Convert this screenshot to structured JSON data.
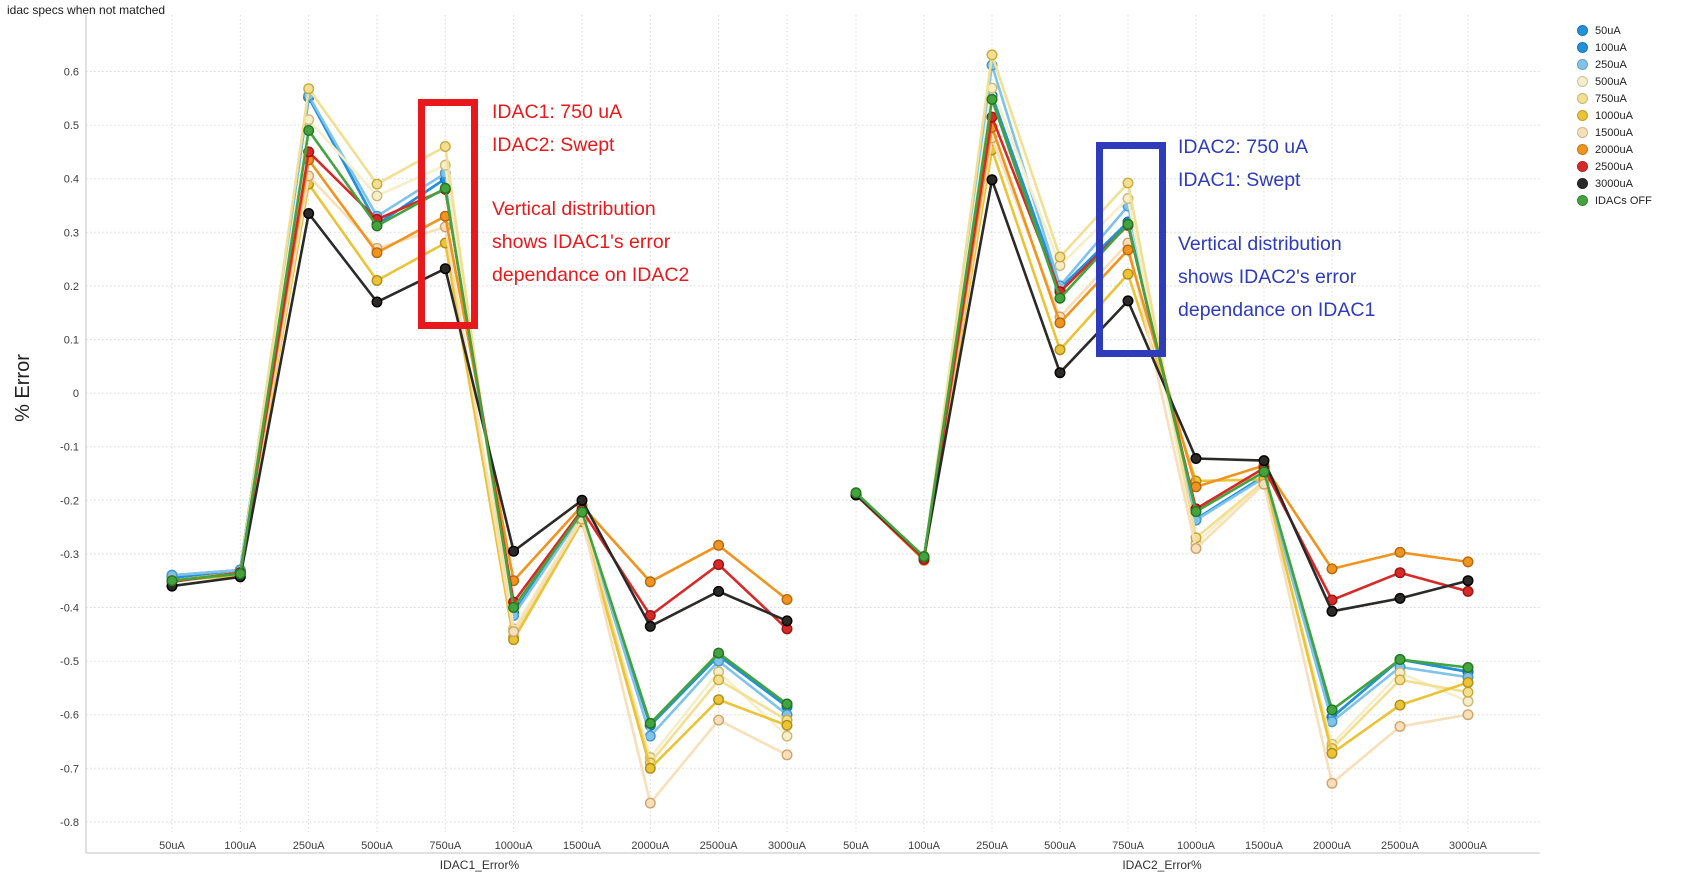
{
  "title": "idac specs when not matched",
  "y_axis_title": "% Error",
  "legend": {
    "items": [
      {
        "label": "50uA",
        "color": "#2191d9"
      },
      {
        "label": "100uA",
        "color": "#2191d9"
      },
      {
        "label": "250uA",
        "color": "#7fc3ea"
      },
      {
        "label": "500uA",
        "color": "#f6eec9"
      },
      {
        "label": "750uA",
        "color": "#f2df92"
      },
      {
        "label": "1000uA",
        "color": "#eac337"
      },
      {
        "label": "1500uA",
        "color": "#f7dfba"
      },
      {
        "label": "2000uA",
        "color": "#f0941f"
      },
      {
        "label": "2500uA",
        "color": "#d62a28"
      },
      {
        "label": "3000uA",
        "color": "#2b2a28"
      },
      {
        "label": "IDACs OFF",
        "color": "#44a33f"
      }
    ]
  },
  "annotations": [
    {
      "color": "#e8191d",
      "heading_lines": [
        "IDAC1: 750 uA",
        "IDAC2: Swept"
      ],
      "body_lines": [
        "Vertical distribution",
        "shows IDAC1's error",
        "dependance on IDAC2"
      ]
    },
    {
      "color": "#2e3bbb",
      "heading_lines": [
        "IDAC2: 750 uA",
        "IDAC1: Swept"
      ],
      "body_lines": [
        "Vertical distribution",
        "shows IDAC2's error",
        "dependance on IDAC1"
      ]
    }
  ],
  "chart_data": {
    "type": "line",
    "title": "idac specs when not matched",
    "ylabel": "% Error",
    "ylim": [
      -0.8,
      0.65
    ],
    "yticks": [
      0.6,
      0.5,
      0.4,
      0.3,
      0.2,
      0.1,
      0,
      -0.1,
      -0.2,
      -0.3,
      -0.4,
      -0.5,
      -0.6,
      -0.7,
      -0.8
    ],
    "grid": true,
    "legend_position": "top-right",
    "categories": [
      "50uA",
      "100uA",
      "250uA",
      "500uA",
      "750uA",
      "1000uA",
      "1500uA",
      "2000uA",
      "2500uA",
      "3000uA"
    ],
    "panels": [
      {
        "xlabel": "IDAC1_Error%"
      },
      {
        "xlabel": "IDAC2_Error%"
      }
    ],
    "series": [
      {
        "name": "50uA",
        "color": "#2191d9",
        "marker_stroke": "#1272b4",
        "left_values": [
          -0.34,
          -0.33,
          0.552,
          0.315,
          0.4,
          -0.41,
          -0.225,
          -0.62,
          -0.49,
          -0.58
        ],
        "right_values": [
          -0.19,
          -0.31,
          0.555,
          0.195,
          0.319,
          -0.235,
          -0.155,
          -0.605,
          -0.497,
          -0.52
        ]
      },
      {
        "name": "100uA",
        "color": "#2191d9",
        "marker_stroke": "#1272b4",
        "left_values": [
          -0.345,
          -0.33,
          0.552,
          0.315,
          0.4,
          -0.41,
          -0.225,
          -0.62,
          -0.49,
          -0.585
        ],
        "right_values": [
          -0.19,
          -0.31,
          0.555,
          0.195,
          0.319,
          -0.235,
          -0.155,
          -0.605,
          -0.497,
          -0.52
        ]
      },
      {
        "name": "250uA",
        "color": "#7fc3ea",
        "marker_stroke": "#4898c6",
        "left_values": [
          -0.34,
          -0.33,
          0.555,
          0.33,
          0.41,
          -0.415,
          -0.225,
          -0.64,
          -0.5,
          -0.6
        ],
        "right_values": [
          -0.19,
          -0.31,
          0.612,
          0.2,
          0.349,
          -0.237,
          -0.158,
          -0.613,
          -0.511,
          -0.53
        ]
      },
      {
        "name": "500uA",
        "color": "#f6eec9",
        "marker_stroke": "#cbb878",
        "left_values": [
          -0.35,
          -0.335,
          0.51,
          0.368,
          0.425,
          -0.44,
          -0.23,
          -0.68,
          -0.52,
          -0.64
        ],
        "right_values": [
          -0.19,
          -0.31,
          0.569,
          0.238,
          0.363,
          -0.28,
          -0.165,
          -0.655,
          -0.522,
          -0.575
        ]
      },
      {
        "name": "750uA",
        "color": "#f2df92",
        "marker_stroke": "#c8a93c",
        "left_values": [
          -0.35,
          -0.335,
          0.568,
          0.39,
          0.46,
          -0.455,
          -0.23,
          -0.69,
          -0.535,
          -0.61
        ],
        "right_values": [
          -0.19,
          -0.31,
          0.631,
          0.254,
          0.392,
          -0.27,
          -0.165,
          -0.663,
          -0.535,
          -0.558
        ]
      },
      {
        "name": "1000uA",
        "color": "#eac337",
        "marker_stroke": "#b08e1a",
        "left_values": [
          -0.35,
          -0.34,
          0.39,
          0.21,
          0.28,
          -0.46,
          -0.24,
          -0.7,
          -0.572,
          -0.62
        ],
        "right_values": [
          -0.19,
          -0.312,
          0.454,
          0.081,
          0.222,
          -0.164,
          -0.161,
          -0.672,
          -0.582,
          -0.54
        ]
      },
      {
        "name": "1500uA",
        "color": "#f7dfba",
        "marker_stroke": "#cfa36b",
        "left_values": [
          -0.35,
          -0.335,
          0.405,
          0.27,
          0.31,
          -0.445,
          -0.235,
          -0.765,
          -0.61,
          -0.675
        ],
        "right_values": [
          -0.19,
          -0.31,
          0.476,
          0.142,
          0.28,
          -0.29,
          -0.17,
          -0.728,
          -0.622,
          -0.6
        ]
      },
      {
        "name": "2000uA",
        "color": "#f0941f",
        "marker_stroke": "#b56a10",
        "left_values": [
          -0.35,
          -0.335,
          0.435,
          0.262,
          0.33,
          -0.35,
          -0.21,
          -0.352,
          -0.284,
          -0.385
        ],
        "right_values": [
          -0.19,
          -0.31,
          0.496,
          0.131,
          0.267,
          -0.175,
          -0.135,
          -0.328,
          -0.297,
          -0.315
        ]
      },
      {
        "name": "2500uA",
        "color": "#d62a28",
        "marker_stroke": "#9c1412",
        "left_values": [
          -0.352,
          -0.335,
          0.45,
          0.324,
          0.38,
          -0.39,
          -0.218,
          -0.415,
          -0.32,
          -0.44
        ],
        "right_values": [
          -0.19,
          -0.31,
          0.515,
          0.189,
          0.313,
          -0.216,
          -0.14,
          -0.386,
          -0.335,
          -0.37
        ]
      },
      {
        "name": "3000uA",
        "color": "#2b2a28",
        "marker_stroke": "#000000",
        "left_values": [
          -0.36,
          -0.343,
          0.335,
          0.17,
          0.232,
          -0.295,
          -0.2,
          -0.435,
          -0.37,
          -0.425
        ],
        "right_values": [
          -0.19,
          -0.305,
          0.398,
          0.038,
          0.172,
          -0.122,
          -0.126,
          -0.407,
          -0.383,
          -0.35
        ]
      },
      {
        "name": "IDACs OFF",
        "color": "#44a33f",
        "marker_stroke": "#23781f",
        "left_values": [
          -0.35,
          -0.337,
          0.49,
          0.312,
          0.382,
          -0.4,
          -0.222,
          -0.616,
          -0.485,
          -0.58
        ],
        "right_values": [
          -0.186,
          -0.305,
          0.548,
          0.177,
          0.315,
          -0.221,
          -0.147,
          -0.591,
          -0.497,
          -0.512
        ]
      }
    ]
  }
}
